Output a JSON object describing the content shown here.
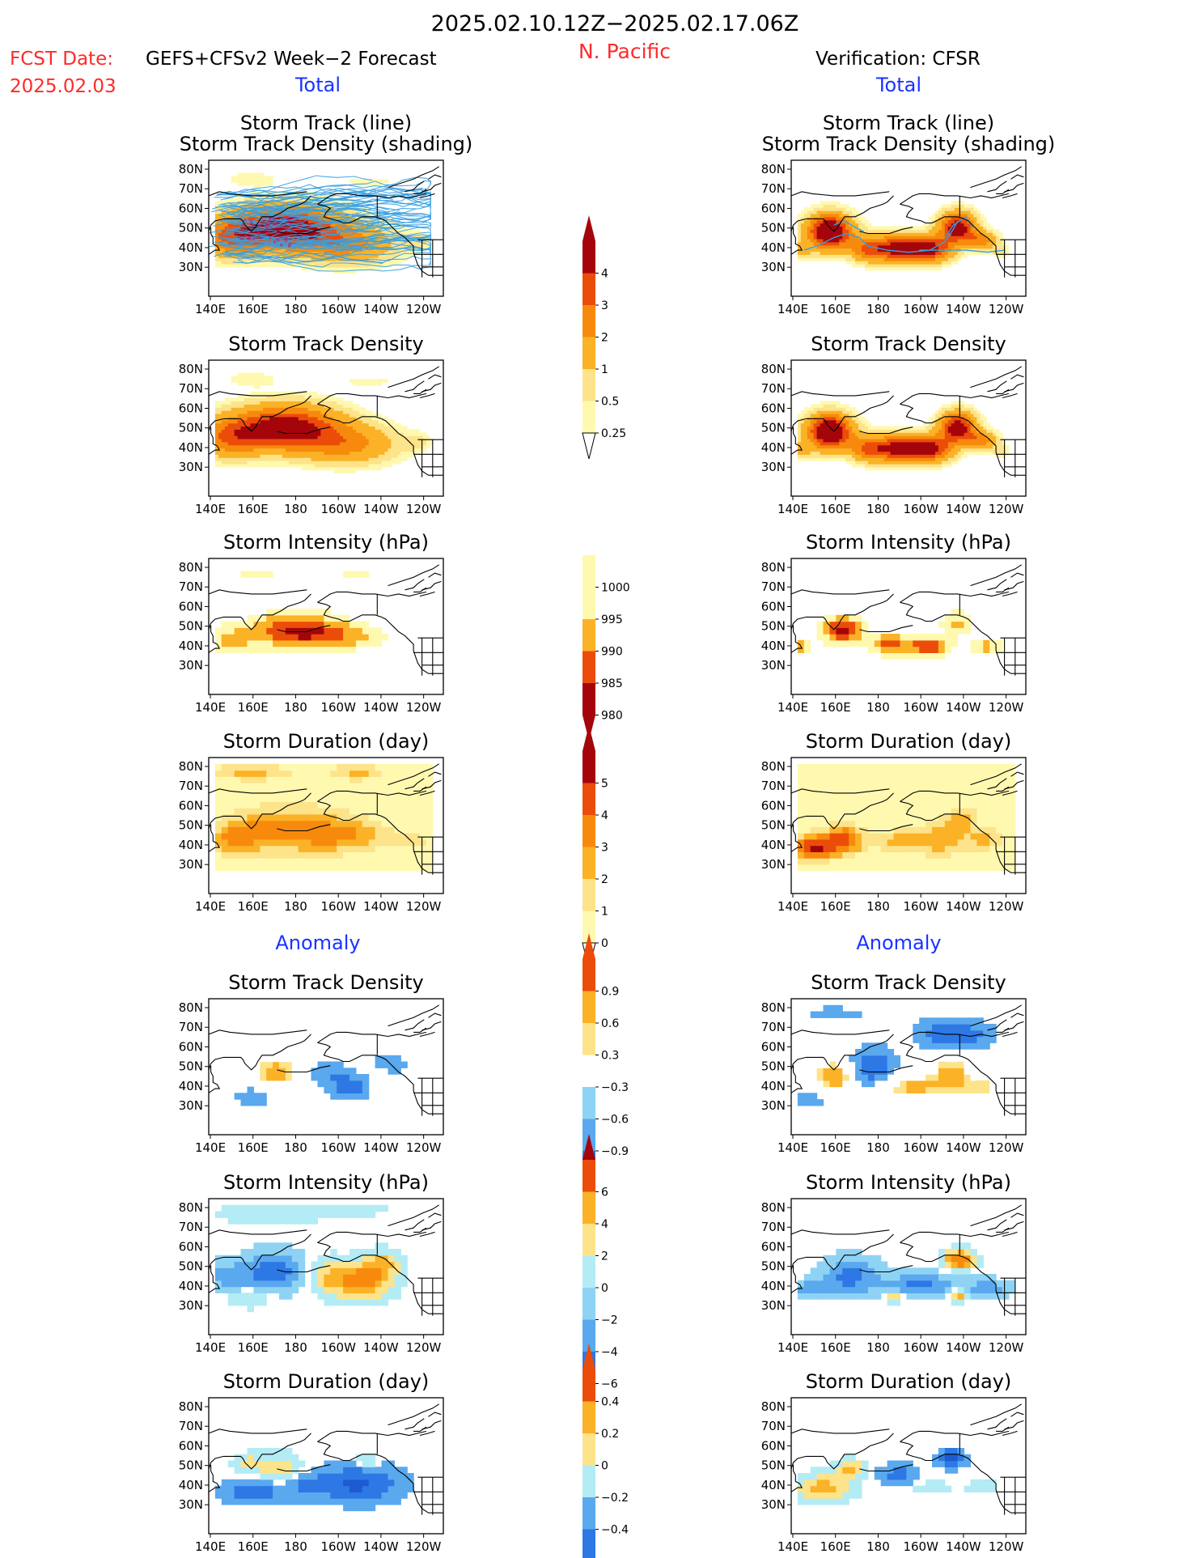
{
  "header": {
    "period": "2025.02.10.12Z−2025.02.17.06Z",
    "region": "N. Pacific",
    "fcst_label": "FCST Date:",
    "fcst_model": "GEFS+CFSv2 Week−2 Forecast",
    "fcst_date": "2025.02.03",
    "verification": "Verification: CFSR"
  },
  "sections": {
    "total": "Total",
    "anomaly": "Anomaly"
  },
  "panel_titles": {
    "track_line": "Storm Track (line)",
    "track_shading": "Storm Track Density (shading)",
    "density": "Storm Track Density",
    "intensity": "Storm Intensity (hPa)",
    "duration": "Storm Duration (day)"
  },
  "axes": {
    "lon_labels": [
      "140E",
      "160E",
      "180",
      "160W",
      "140W",
      "120W"
    ],
    "lat_labels": [
      "80N",
      "70N",
      "60N",
      "50N",
      "40N",
      "30N"
    ]
  },
  "colors": {
    "warm": [
      "#fff9b0",
      "#fde38a",
      "#fbb226",
      "#f78a0c",
      "#ec4c0a",
      "#d21e0b",
      "#a4050b"
    ],
    "cool": [
      "#b3ecf5",
      "#8fd3f4",
      "#5aa8ee",
      "#2d78e4",
      "#1e5bd0"
    ],
    "title_red": "#ff2a2a",
    "title_blue": "#1a33ff",
    "track_line": "#3aa0e0"
  },
  "colorbars": {
    "density_total": [
      "4",
      "3",
      "2",
      "1",
      "0.5",
      "0.25"
    ],
    "intensity_total": [
      "1000",
      "995",
      "990",
      "985",
      "980"
    ],
    "duration_total": [
      "5",
      "4",
      "3",
      "2",
      "1",
      "0"
    ],
    "density_anom": [
      "0.9",
      "0.6",
      "0.3",
      "−0.3",
      "−0.6",
      "−0.9"
    ],
    "intensity_anom": [
      "6",
      "4",
      "2",
      "0",
      "−2",
      "−4",
      "−6"
    ],
    "duration_anom": [
      "0.4",
      "0.2",
      "0",
      "−0.2",
      "−0.4"
    ]
  }
}
